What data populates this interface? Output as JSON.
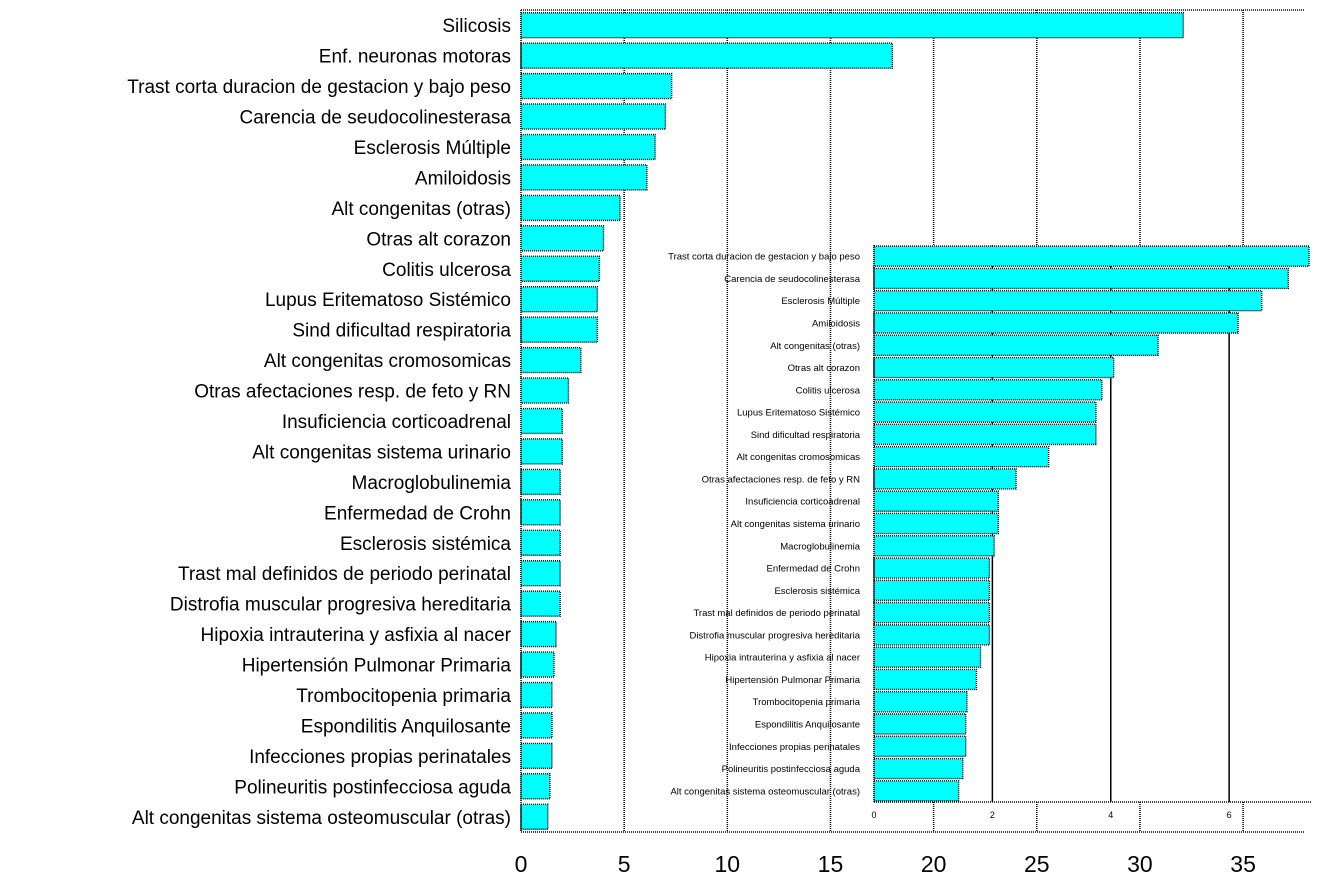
{
  "colors": {
    "bar_fill": "#00ffff",
    "bar_stroke": "#000000",
    "grid": "#000000"
  },
  "chart_data": [
    {
      "type": "bar",
      "orientation": "horizontal",
      "categories": [
        "Silicosis",
        "Enf. neuronas motoras",
        "Trast corta duracion de gestacion y bajo peso",
        "Carencia de seudocolinesterasa",
        "Esclerosis Múltiple",
        "Amiloidosis",
        "Alt congenitas (otras)",
        "Otras alt corazon",
        "Colitis ulcerosa",
        "Lupus Eritematoso Sistémico",
        "Sind dificultad respiratoria",
        "Alt congenitas cromosomicas",
        "Otras afectaciones resp. de feto y RN",
        "Insuficiencia corticoadrenal",
        "Alt congenitas sistema urinario",
        "Macroglobulinemia",
        "Enfermedad de Crohn",
        "Esclerosis sistémica",
        "Trast mal definidos de periodo perinatal",
        "Distrofia muscular progresiva hereditaria",
        "Hipoxia intrauterina y asfixia al nacer",
        "Hipertensión Pulmonar Primaria",
        "Trombocitopenia primaria",
        "Espondilitis Anquilosante",
        "Infecciones propias perinatales",
        "Polineuritis postinfecciosa aguda",
        "Alt congenitas sistema osteomuscular (otras)"
      ],
      "values": [
        32.1,
        18.0,
        7.3,
        7.0,
        6.5,
        6.1,
        4.8,
        4.0,
        3.8,
        3.7,
        3.7,
        2.9,
        2.3,
        2.0,
        2.0,
        1.9,
        1.9,
        1.9,
        1.9,
        1.9,
        1.7,
        1.6,
        1.5,
        1.5,
        1.5,
        1.4,
        1.3
      ],
      "xlim": [
        0,
        38
      ],
      "xticks": [
        "0",
        "5",
        "10",
        "15",
        "20",
        "25",
        "30",
        "35"
      ],
      "grid": "vertical dotted"
    },
    {
      "type": "bar",
      "orientation": "horizontal",
      "categories": [
        "Trast corta duracion de gestacion y bajo peso",
        "Carencia de seudocolinesterasa",
        "Esclerosis Múltiple",
        "Amiloidosis",
        "Alt congenitas (otras)",
        "Otras alt corazon",
        "Colitis ulcerosa",
        "Lupus Eritematoso Sistémico",
        "Sind dificultad respiratoria",
        "Alt congenitas cromosomicas",
        "Otras afectaciones resp. de feto y RN",
        "Insuficiencia corticoadrenal",
        "Alt congenitas sistema urinario",
        "Macroglobulinemia",
        "Enfermedad de Crohn",
        "Esclerosis sistémica",
        "Trast mal definidos de periodo perinatal",
        "Distrofia muscular progresiva hereditaria",
        "Hipoxia intrauterina y asfixia al nacer",
        "Hipertensión Pulmonar Primaria",
        "Trombocitopenia primaria",
        "Espondilitis Anquilosante",
        "Infecciones propias perinatales",
        "Polineuritis postinfecciosa aguda",
        "Alt congenitas sistema osteomuscular (otras)"
      ],
      "values": [
        7.35,
        7.0,
        6.55,
        6.15,
        4.8,
        4.05,
        3.85,
        3.75,
        3.75,
        2.95,
        2.4,
        2.1,
        2.1,
        2.03,
        1.95,
        1.95,
        1.95,
        1.95,
        1.8,
        1.73,
        1.57,
        1.55,
        1.55,
        1.5,
        1.43
      ],
      "xlim": [
        0,
        7.4
      ],
      "xticks": [
        "0",
        "2",
        "4",
        "6"
      ],
      "grid": "vertical solid"
    }
  ]
}
